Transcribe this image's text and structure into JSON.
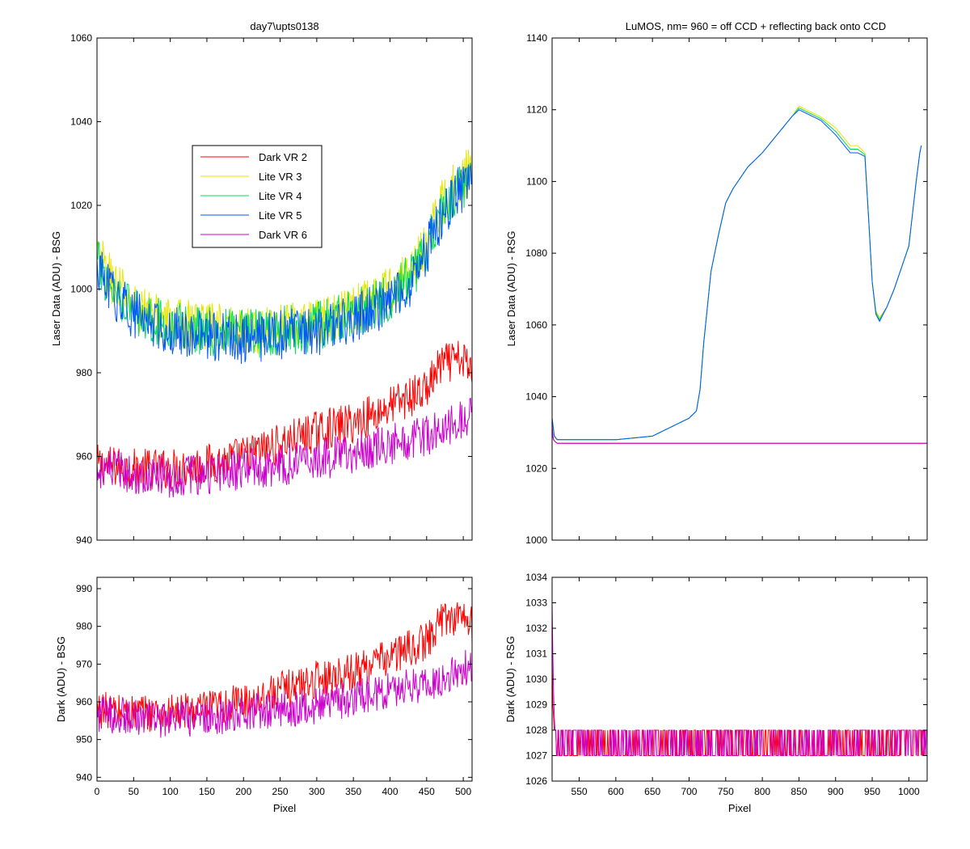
{
  "chart_data": [
    {
      "id": "bsg_laser",
      "type": "line",
      "title": "day7\\upts0138",
      "xlabel": "",
      "ylabel": "Laser Data (ADU) - BSG",
      "xlim": [
        0,
        512
      ],
      "ylim": [
        940,
        1060
      ],
      "xticks": [
        0,
        50,
        100,
        150,
        200,
        250,
        300,
        350,
        400,
        450,
        500
      ],
      "xtick_labels_shown": false,
      "yticks": [
        940,
        960,
        980,
        1000,
        1020,
        1040,
        1060
      ],
      "grid": false,
      "legend": {
        "placement": "upper-left-center",
        "entries": [
          {
            "label": "Dark VR 2",
            "color": "#ff0000"
          },
          {
            "label": "Lite VR 3",
            "color": "#e6e600"
          },
          {
            "label": "Lite VR 4",
            "color": "#00dd55"
          },
          {
            "label": "Lite VR 5",
            "color": "#0055ff"
          },
          {
            "label": "Dark VR 6",
            "color": "#cc00cc"
          }
        ]
      },
      "series": [
        {
          "name": "Dark VR 2",
          "color": "#ff0000",
          "noise": 5,
          "x": [
            0,
            50,
            100,
            150,
            200,
            250,
            300,
            350,
            400,
            450,
            470,
            500,
            512
          ],
          "y": [
            958,
            957,
            957,
            958,
            960,
            963,
            966,
            968,
            972,
            976,
            982,
            983,
            980
          ]
        },
        {
          "name": "Lite VR 3",
          "color": "#e6e600",
          "noise": 6,
          "x": [
            0,
            20,
            50,
            100,
            150,
            200,
            250,
            300,
            350,
            400,
            430,
            450,
            470,
            490,
            512
          ],
          "y": [
            1008,
            1002,
            996,
            992,
            991,
            990,
            991,
            992,
            995,
            1000,
            1004,
            1012,
            1020,
            1026,
            1028
          ]
        },
        {
          "name": "Lite VR 4",
          "color": "#00dd55",
          "noise": 6,
          "x": [
            0,
            20,
            50,
            100,
            150,
            200,
            250,
            300,
            350,
            400,
            430,
            450,
            470,
            490,
            512
          ],
          "y": [
            1006,
            1001,
            995,
            991,
            990,
            989,
            990,
            991,
            994,
            998,
            1003,
            1010,
            1018,
            1024,
            1026
          ]
        },
        {
          "name": "Lite VR 5",
          "color": "#0055ff",
          "noise": 6,
          "x": [
            0,
            20,
            50,
            100,
            150,
            200,
            250,
            300,
            350,
            400,
            430,
            450,
            470,
            490,
            512
          ],
          "y": [
            1005,
            999,
            994,
            990,
            989,
            988,
            989,
            990,
            993,
            997,
            1002,
            1009,
            1017,
            1023,
            1025
          ]
        },
        {
          "name": "Dark VR 6",
          "color": "#cc00cc",
          "noise": 5,
          "x": [
            0,
            50,
            100,
            150,
            200,
            250,
            300,
            350,
            400,
            450,
            470,
            500,
            512
          ],
          "y": [
            957,
            956,
            955,
            956,
            957,
            958,
            959,
            961,
            963,
            965,
            966,
            969,
            970
          ]
        }
      ]
    },
    {
      "id": "rsg_laser",
      "type": "line",
      "title": "LuMOS, nm= 960 = off CCD + reflecting back onto CCD",
      "xlabel": "",
      "ylabel": "Laser Data (ADU) - RSG",
      "xlim": [
        513,
        1025
      ],
      "ylim": [
        1000,
        1140
      ],
      "xticks": [
        550,
        600,
        650,
        700,
        750,
        800,
        850,
        900,
        950,
        1000
      ],
      "xtick_labels_shown": false,
      "yticks": [
        1000,
        1020,
        1040,
        1060,
        1080,
        1100,
        1120,
        1140
      ],
      "grid": false,
      "series": [
        {
          "name": "Dark VR 2",
          "color": "#ff0000",
          "noise": 0,
          "x": [
            513,
            514,
            515,
            517,
            520,
            1025
          ],
          "y": [
            1031,
            1029,
            1028,
            1027.5,
            1027,
            1027
          ]
        },
        {
          "name": "Lite VR 3",
          "color": "#e6e600",
          "noise": 0,
          "x": [
            513,
            516,
            520,
            600,
            650,
            660,
            680,
            700,
            710,
            715,
            720,
            725,
            730,
            740,
            750,
            760,
            780,
            800,
            820,
            840,
            850,
            860,
            880,
            900,
            920,
            930,
            940,
            945,
            950,
            955,
            960,
            970,
            980,
            1000,
            1010,
            1015,
            1017
          ],
          "y": [
            1034,
            1029,
            1028,
            1028,
            1029,
            1030,
            1032,
            1034,
            1036,
            1042,
            1055,
            1065,
            1075,
            1085,
            1094,
            1098,
            1104,
            1108,
            1113,
            1118,
            1121,
            1120,
            1118,
            1115,
            1110,
            1110,
            1108,
            1090,
            1072,
            1064,
            1062,
            1065,
            1070,
            1082,
            1100,
            1108,
            1110
          ]
        },
        {
          "name": "Lite VR 4",
          "color": "#00dd55",
          "noise": 0,
          "x": [
            513,
            516,
            520,
            600,
            650,
            660,
            680,
            700,
            710,
            715,
            720,
            725,
            730,
            740,
            750,
            760,
            780,
            800,
            820,
            840,
            850,
            860,
            880,
            900,
            920,
            930,
            940,
            945,
            950,
            955,
            960,
            970,
            980,
            1000,
            1010,
            1015,
            1017
          ],
          "y": [
            1034,
            1029,
            1028,
            1028,
            1029,
            1030,
            1032,
            1034,
            1036,
            1042,
            1055,
            1065,
            1075,
            1085,
            1094,
            1098,
            1104,
            1108,
            1113,
            1118,
            1120.5,
            1119.5,
            1117.5,
            1114,
            1109,
            1109,
            1107.5,
            1090,
            1072,
            1063.5,
            1061.5,
            1065,
            1070,
            1082,
            1100,
            1108,
            1110
          ]
        },
        {
          "name": "Lite VR 5",
          "color": "#0055ff",
          "noise": 0,
          "x": [
            513,
            516,
            520,
            600,
            650,
            660,
            680,
            700,
            710,
            715,
            720,
            725,
            730,
            740,
            750,
            760,
            780,
            800,
            820,
            840,
            850,
            860,
            880,
            900,
            920,
            930,
            940,
            945,
            950,
            955,
            960,
            970,
            980,
            1000,
            1010,
            1015,
            1017
          ],
          "y": [
            1034,
            1029,
            1028,
            1028,
            1029,
            1030,
            1032,
            1034,
            1036,
            1042,
            1055,
            1065,
            1075,
            1085,
            1094,
            1098,
            1104,
            1108,
            1113,
            1118,
            1120,
            1119,
            1117,
            1113,
            1108,
            1108,
            1107,
            1090,
            1072,
            1063,
            1061,
            1065,
            1070,
            1082,
            1100,
            1108,
            1110
          ]
        },
        {
          "name": "Dark VR 6",
          "color": "#cc00cc",
          "noise": 0,
          "x": [
            513,
            514,
            515,
            517,
            520,
            1025
          ],
          "y": [
            1032,
            1029,
            1028,
            1027.5,
            1027,
            1027
          ]
        }
      ]
    },
    {
      "id": "bsg_dark",
      "type": "line",
      "title": "",
      "xlabel": "Pixel",
      "ylabel": "Dark (ADU) - BSG",
      "xlim": [
        0,
        512
      ],
      "ylim": [
        939,
        993
      ],
      "xticks": [
        0,
        50,
        100,
        150,
        200,
        250,
        300,
        350,
        400,
        450,
        500
      ],
      "xtick_labels_shown": true,
      "yticks": [
        940,
        950,
        960,
        970,
        980,
        990
      ],
      "grid": false,
      "series": [
        {
          "name": "Dark VR 2",
          "color": "#ff0000",
          "noise": 5,
          "x": [
            0,
            50,
            100,
            150,
            200,
            250,
            300,
            350,
            400,
            450,
            470,
            500,
            512
          ],
          "y": [
            958,
            957,
            957,
            958,
            960,
            963,
            966,
            968,
            972,
            976,
            982,
            983,
            980
          ]
        },
        {
          "name": "Dark VR 6",
          "color": "#cc00cc",
          "noise": 5,
          "x": [
            0,
            50,
            100,
            150,
            200,
            250,
            300,
            350,
            400,
            450,
            470,
            500,
            512
          ],
          "y": [
            957,
            956,
            955,
            956,
            957,
            958,
            959,
            961,
            963,
            965,
            966,
            969,
            970
          ]
        }
      ]
    },
    {
      "id": "rsg_dark",
      "type": "line",
      "title": "",
      "xlabel": "Pixel",
      "ylabel": "Dark (ADU) - RSG",
      "xlim": [
        513,
        1025
      ],
      "ylim": [
        1026,
        1034
      ],
      "xticks": [
        550,
        600,
        650,
        700,
        750,
        800,
        850,
        900,
        950,
        1000
      ],
      "xtick_labels_shown": true,
      "yticks": [
        1026,
        1027,
        1028,
        1029,
        1030,
        1031,
        1032,
        1033,
        1034
      ],
      "grid": false,
      "series": [
        {
          "name": "Dark VR 2",
          "color": "#ff0000",
          "noise": 0,
          "x": [
            513,
            514,
            515,
            516,
            517,
            518,
            519
          ],
          "y": [
            1031,
            1029,
            1028.5,
            1028,
            1028,
            1028,
            1027
          ],
          "toggle": [
            1027,
            1028
          ]
        },
        {
          "name": "Dark VR 6",
          "color": "#cc00cc",
          "noise": 0,
          "x": [
            513,
            514,
            515,
            516,
            517,
            518,
            519
          ],
          "y": [
            1033,
            1031,
            1029.5,
            1028.5,
            1028,
            1028,
            1027
          ],
          "toggle": [
            1027,
            1028
          ]
        }
      ]
    }
  ]
}
